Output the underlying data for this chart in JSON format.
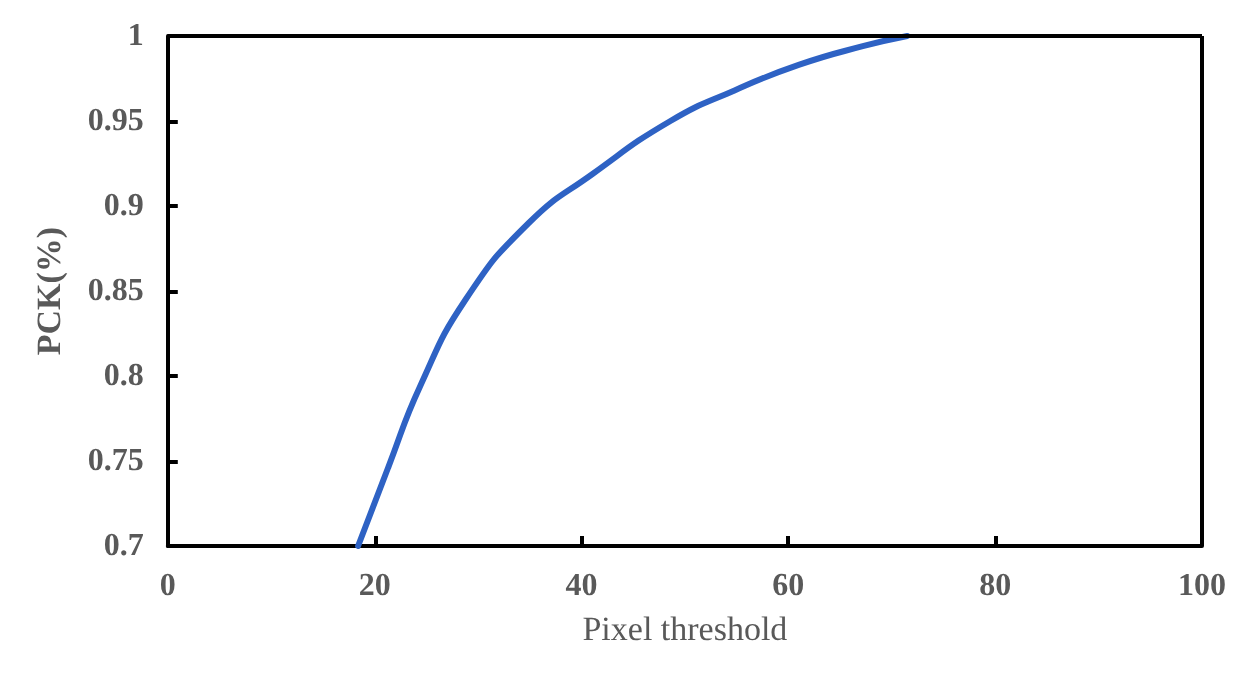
{
  "chart_data": {
    "type": "line",
    "xlabel": "Pixel threshold",
    "ylabel": "PCK(%)",
    "xlim": [
      0,
      100
    ],
    "xticks": [
      0,
      20,
      40,
      60,
      80,
      100
    ],
    "ylim": [
      0.7,
      1
    ],
    "yticks": [
      0.7,
      0.75,
      0.8,
      0.85,
      0.9,
      0.95,
      1
    ],
    "grid": false,
    "marker": "none",
    "line_style": "solid",
    "series": [
      {
        "color": "#2e62c4",
        "x": [
          18.4,
          21.3,
          24.4,
          28.8,
          34.9,
          41.1,
          48.6,
          54.8,
          61.0,
          67.2,
          71.5
        ],
        "values": [
          0.7,
          0.746,
          0.794,
          0.845,
          0.89,
          0.919,
          0.95,
          0.968,
          0.983,
          0.994,
          1.0
        ]
      }
    ]
  }
}
